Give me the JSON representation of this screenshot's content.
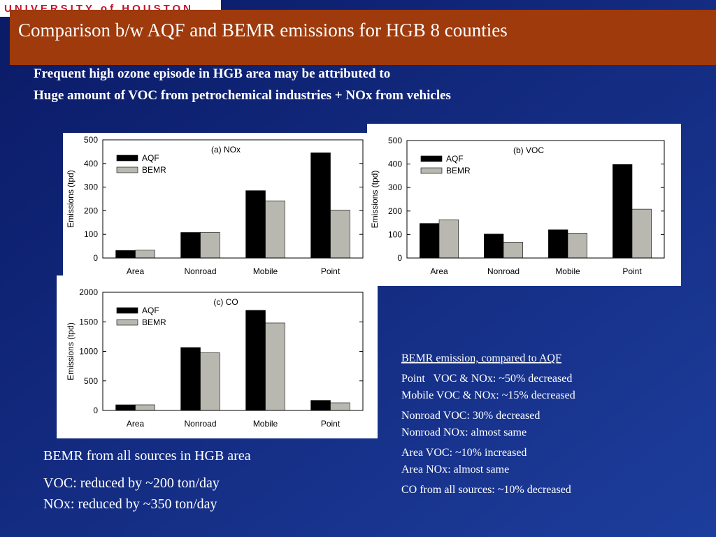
{
  "logo": "UNIVERSITY of HOUSTON",
  "title": "Comparison b/w AQF and BEMR emissions for HGB 8 counties",
  "intro": [
    "Frequent high ozone episode in HGB area may be attributed to",
    "Huge amount of VOC from petrochemical industries + NOx from vehicles"
  ],
  "summary": {
    "heading": "BEMR from all sources in HGB area",
    "lines": [
      "VOC: reduced by ~200 ton/day",
      "NOx: reduced by ~350 ton/day"
    ]
  },
  "notes": {
    "heading": "BEMR emission, compared to AQF",
    "lines": [
      "Point   VOC & NOx: ~50% decreased",
      "Mobile VOC & NOx: ~15% decreased",
      "Nonroad VOC: 30% decreased",
      "Nonroad NOx: almost same",
      "Area VOC: ~10% increased",
      "Area NOx: almost same",
      "CO from all sources: ~10% decreased"
    ]
  },
  "chart_data": [
    {
      "type": "bar",
      "title": "(a) NOx",
      "y_label": "Emissions (tpd)",
      "categories": [
        "Area",
        "Nonroad",
        "Mobile",
        "Point"
      ],
      "series": [
        {
          "name": "AQF",
          "color": "#000000",
          "values": [
            32,
            108,
            285,
            445
          ]
        },
        {
          "name": "BEMR",
          "color": "#b8b8b0",
          "values": [
            33,
            108,
            242,
            203
          ]
        }
      ],
      "ylim": [
        0,
        500
      ],
      "yticks": [
        0,
        100,
        200,
        300,
        400,
        500
      ]
    },
    {
      "type": "bar",
      "title": "(b) VOC",
      "y_label": "Emissions (tpd)",
      "categories": [
        "Area",
        "Nonroad",
        "Mobile",
        "Point"
      ],
      "series": [
        {
          "name": "AQF",
          "color": "#000000",
          "values": [
            147,
            102,
            120,
            398
          ]
        },
        {
          "name": "BEMR",
          "color": "#b8b8b0",
          "values": [
            163,
            67,
            106,
            208
          ]
        }
      ],
      "ylim": [
        0,
        500
      ],
      "yticks": [
        0,
        100,
        200,
        300,
        400,
        500
      ]
    },
    {
      "type": "bar",
      "title": "(c) CO",
      "y_label": "Emissions (tpd)",
      "categories": [
        "Area",
        "Nonroad",
        "Mobile",
        "Point"
      ],
      "series": [
        {
          "name": "AQF",
          "color": "#000000",
          "values": [
            95,
            1065,
            1695,
            170
          ]
        },
        {
          "name": "BEMR",
          "color": "#b8b8b0",
          "values": [
            95,
            975,
            1480,
            130
          ]
        }
      ],
      "ylim": [
        0,
        2000
      ],
      "yticks": [
        0,
        500,
        1000,
        1500,
        2000
      ]
    }
  ]
}
